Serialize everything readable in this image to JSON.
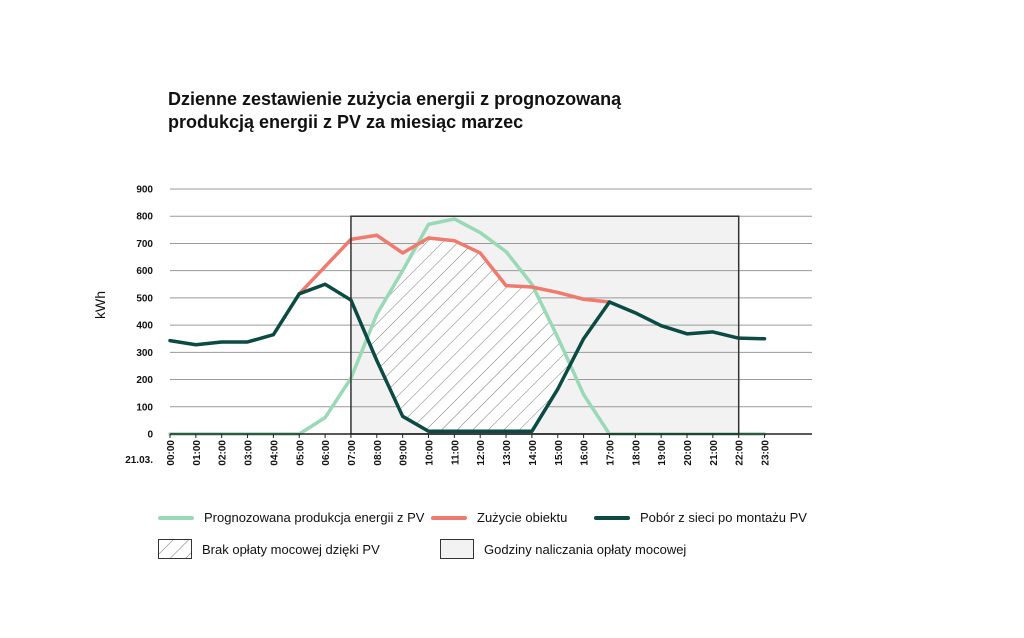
{
  "chart_data": {
    "type": "line",
    "title_lines": [
      "Dzienne zestawienie zużycia energii z prognozowaną",
      "produkcją energii z PV za miesiąc marzec"
    ],
    "ylabel": "kWh",
    "date_label": "21.03.",
    "ylim": [
      0,
      900
    ],
    "yticks": [
      0,
      100,
      200,
      300,
      400,
      500,
      600,
      700,
      800,
      900
    ],
    "categories": [
      "00:00",
      "01:00",
      "02:00",
      "03:00",
      "04:00",
      "05:00",
      "06:00",
      "07:00",
      "08:00",
      "09:00",
      "10:00",
      "11:00",
      "12:00",
      "13:00",
      "14:00",
      "15:00",
      "16:00",
      "17:00",
      "18:00",
      "19:00",
      "20:00",
      "21:00",
      "22:00",
      "23:00"
    ],
    "series": [
      {
        "key": "pv",
        "name": "Prognozowana produkcja energii z PV",
        "color": "#9ad9b5",
        "values": [
          0,
          0,
          0,
          0,
          0,
          0,
          60,
          205,
          440,
          600,
          770,
          790,
          740,
          670,
          550,
          355,
          145,
          0,
          0,
          0,
          0,
          0,
          0,
          0
        ]
      },
      {
        "key": "consumption",
        "name": "Zużycie obiektu",
        "color": "#f07a6e",
        "values": [
          null,
          null,
          null,
          null,
          null,
          515,
          615,
          715,
          730,
          665,
          720,
          710,
          665,
          545,
          540,
          520,
          495,
          485,
          null,
          null,
          null,
          null,
          null,
          null
        ]
      },
      {
        "key": "grid",
        "name": "Pobór z sieci po montażu PV",
        "color": "#0c4a44",
        "values": [
          343,
          328,
          338,
          338,
          365,
          515,
          550,
          492,
          270,
          65,
          10,
          10,
          10,
          10,
          10,
          165,
          350,
          485,
          445,
          398,
          368,
          375,
          352,
          350
        ]
      }
    ],
    "areas": [
      {
        "key": "hatch",
        "name": "Brak opłaty mocowej dzięki PV",
        "pattern": "diagonal-hatch"
      },
      {
        "key": "demand_hours",
        "name": "Godziny naliczania opłaty mocowej",
        "color": "#f2f2f2",
        "x_range": [
          "07:00",
          "22:00"
        ],
        "y_range": [
          0,
          800
        ]
      }
    ],
    "grid": true,
    "legend_position": "bottom"
  }
}
